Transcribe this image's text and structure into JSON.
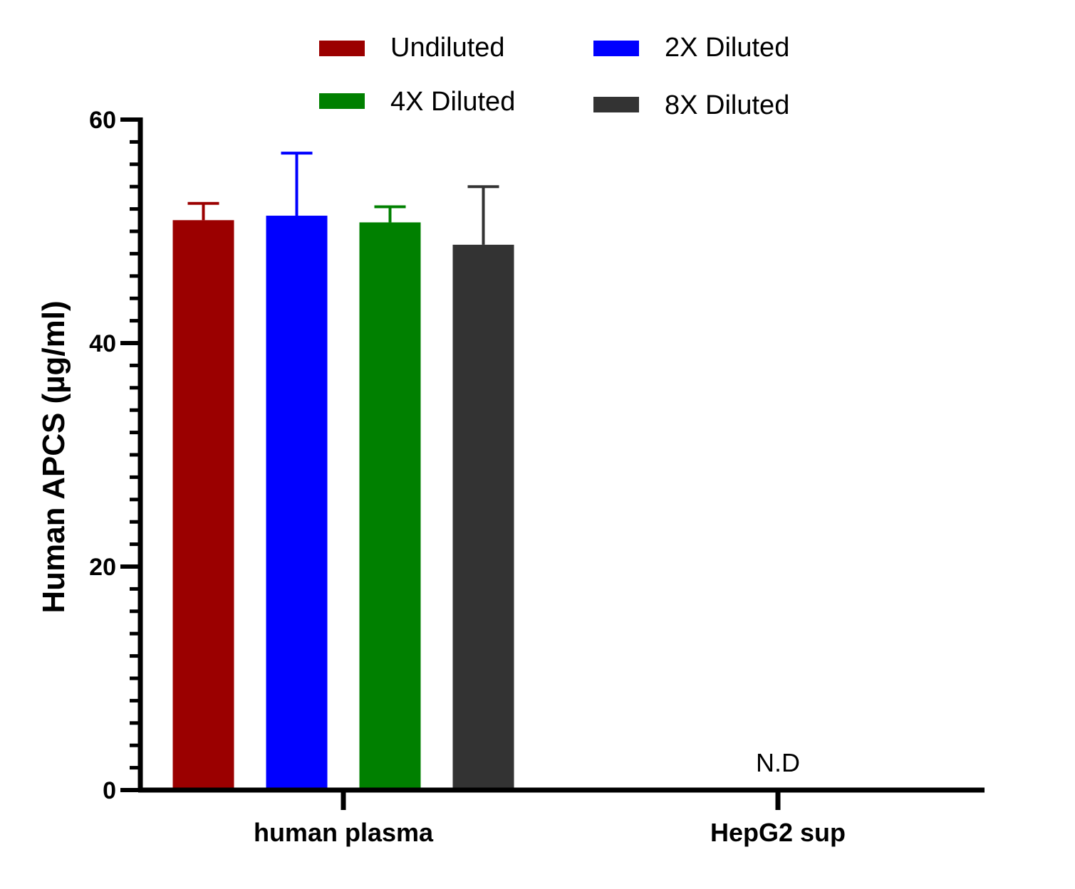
{
  "chart_data": {
    "type": "bar",
    "title": "",
    "xlabel": "",
    "ylabel": "Human APCS (µg/ml)",
    "ylim": [
      0,
      60
    ],
    "yticks": [
      0,
      20,
      40,
      60
    ],
    "minor_tick_step": 2,
    "categories": [
      "human plasma",
      "HepG2 sup"
    ],
    "series": [
      {
        "name": "Undiluted",
        "color": "#9b0000",
        "values": [
          51.0,
          null
        ],
        "errors": [
          1.5,
          null
        ]
      },
      {
        "name": "2X Diluted",
        "color": "#0000ff",
        "values": [
          51.4,
          null
        ],
        "errors": [
          5.6,
          null
        ]
      },
      {
        "name": "4X Diluted",
        "color": "#008000",
        "values": [
          50.8,
          null
        ],
        "errors": [
          1.4,
          null
        ]
      },
      {
        "name": "8X Diluted",
        "color": "#333333",
        "values": [
          48.8,
          null
        ],
        "errors": [
          5.2,
          null
        ]
      }
    ],
    "annotations": [
      {
        "category": "HepG2 sup",
        "text": "N.D"
      }
    ],
    "legend": "top",
    "grid": false
  }
}
